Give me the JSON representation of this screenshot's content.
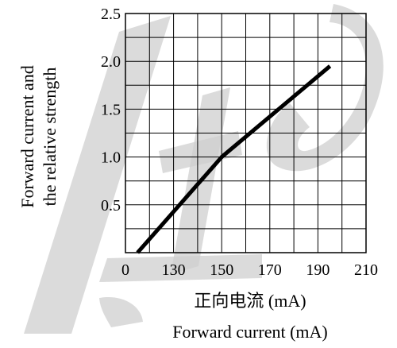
{
  "chart_data": {
    "type": "line",
    "y_label_line1": "Forward current and",
    "y_label_line2": "the relative strength",
    "x_label_cn": "正向电流 (mA)",
    "x_label_en": "Forward current (mA)",
    "x_tick_labels": [
      "0",
      "130",
      "150",
      "170",
      "190",
      "210"
    ],
    "x_tick_positions": [
      0,
      2,
      4,
      6,
      8,
      10
    ],
    "x_grid_divisions": 10,
    "y_tick_labels": [
      "0.5",
      "1.0",
      "1.5",
      "2.0",
      "2.5"
    ],
    "ylim": [
      0,
      2.5
    ],
    "grid": true,
    "series": [
      {
        "x_axis_units": [
          0.5,
          4.0,
          8.5
        ],
        "values": [
          0,
          1.0,
          1.95
        ]
      }
    ],
    "watermark_text": "LTd",
    "colors": {
      "line": "#000000",
      "grid": "#000000",
      "watermark": "#cfcfcf"
    }
  }
}
